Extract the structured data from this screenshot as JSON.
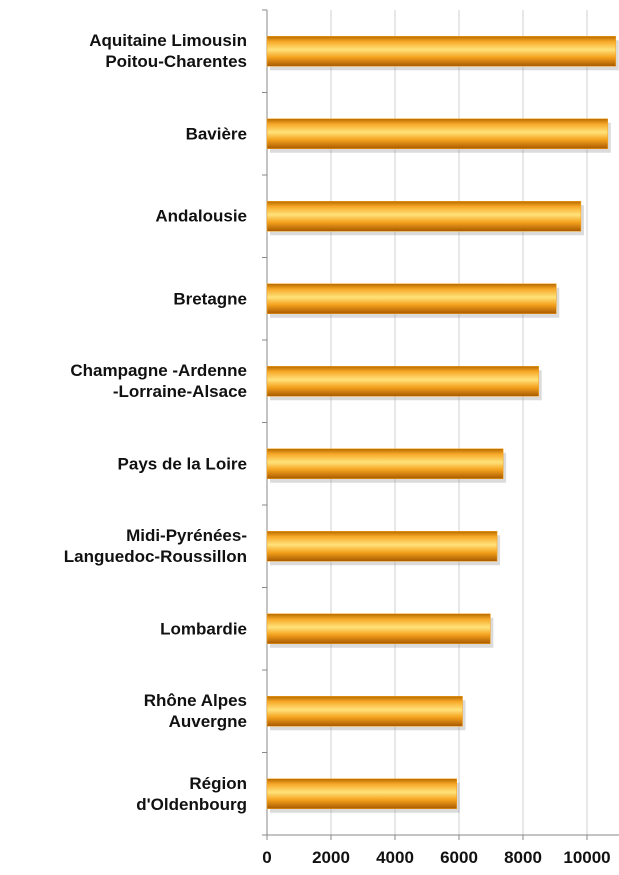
{
  "chart_data": {
    "type": "bar",
    "orientation": "horizontal",
    "categories": [
      "Aquitaine Limousin\nPoitou-Charentes",
      "Bavière",
      "Andalousie",
      "Bretagne",
      "Champagne -Ardenne\n-Lorraine-Alsace",
      "Pays de la Loire",
      "Midi-Pyrénées-\nLanguedoc-Roussillon",
      "Lombardie",
      "Rhône Alpes\nAuvergne",
      "Région\nd'Oldenbourg"
    ],
    "values": [
      10900,
      10650,
      9810,
      9040,
      8490,
      7380,
      7190,
      6980,
      6110,
      5930
    ],
    "color": "#f5a21e",
    "xlim": [
      0,
      11000
    ],
    "xticks": [
      0,
      2000,
      4000,
      6000,
      8000,
      10000
    ],
    "grid": true
  }
}
